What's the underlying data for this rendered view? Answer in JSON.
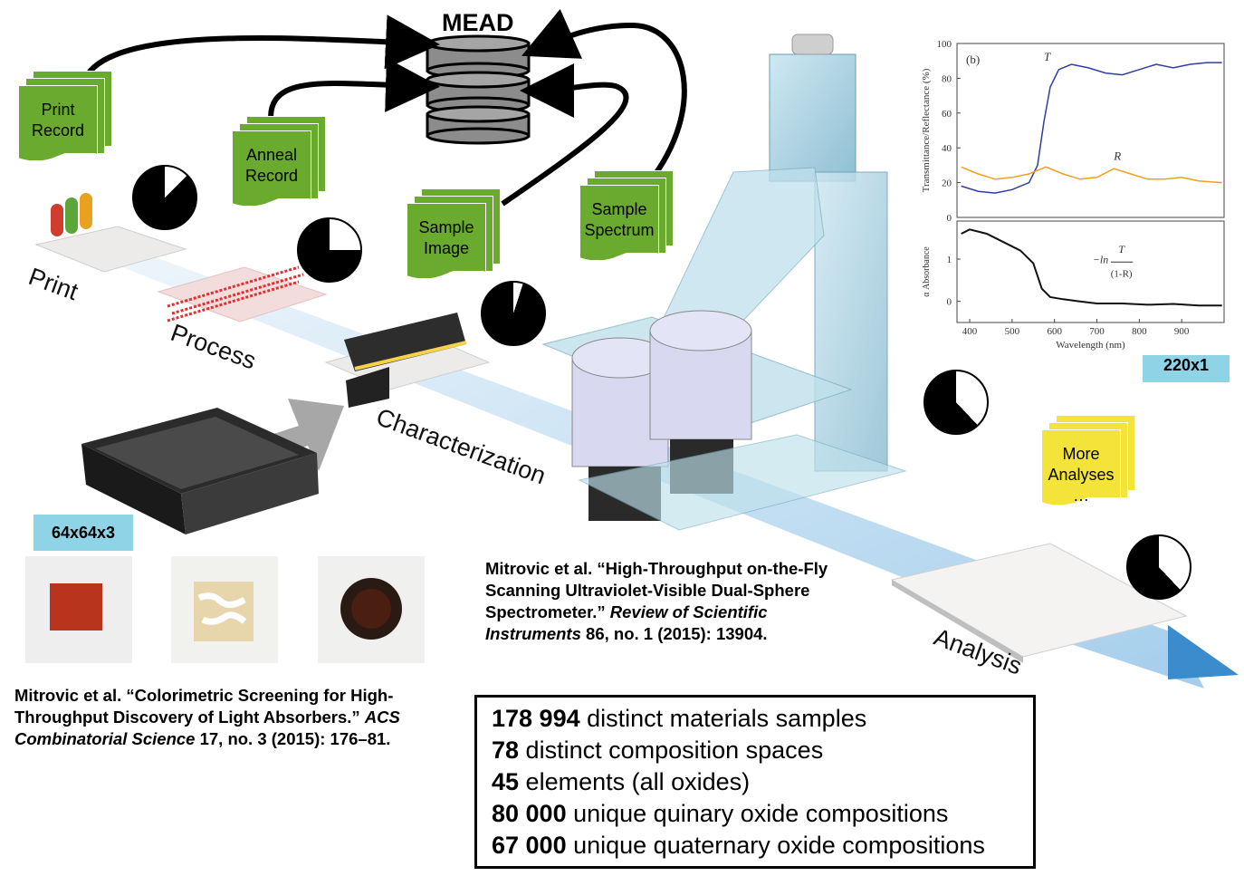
{
  "database": {
    "label": "MEAD"
  },
  "documents": [
    {
      "id": "print-record",
      "lines": [
        "Print",
        "Record"
      ],
      "color": "#6aaa2f"
    },
    {
      "id": "anneal-record",
      "lines": [
        "Anneal",
        "Record"
      ],
      "color": "#6aaa2f"
    },
    {
      "id": "sample-image",
      "lines": [
        "Sample",
        "Image"
      ],
      "color": "#6aaa2f"
    },
    {
      "id": "sample-spectrum",
      "lines": [
        "Sample",
        "Spectrum"
      ],
      "color": "#6aaa2f"
    },
    {
      "id": "more-analyses",
      "lines": [
        "More",
        "Analyses",
        "…"
      ],
      "color": "#f4e43a"
    }
  ],
  "stages": {
    "print": "Print",
    "process": "Process",
    "characterization": "Characterization",
    "analysis": "Analysis"
  },
  "progress_pies": {
    "print": 0.875,
    "process": 0.75,
    "characterization": 0.95,
    "uvvis": 0.62,
    "analysis": 0.62
  },
  "tags": {
    "image_size": "64x64x3",
    "spectrum_size": "220x1"
  },
  "references": {
    "colorimetric": {
      "part1": "Mitrovic et al. “Colorimetric Screening for High-Throughput Discovery of Light Absorbers.” ",
      "journal": "ACS Combinatorial Science",
      "part2": " 17, no. 3 (2015): 176–81."
    },
    "spectrometer": {
      "part1": "Mitrovic et al. “High-Throughput on-the-Fly Scanning Ultraviolet-Visible Dual-Sphere Spectrometer.” ",
      "journal": "Review of Scientific Instruments",
      "part2": " 86, no. 1 (2015): 13904."
    }
  },
  "stats": [
    {
      "number": "178 994",
      "text": " distinct materials samples"
    },
    {
      "number": "78",
      "text": " distinct composition spaces"
    },
    {
      "number": "45",
      "text": " elements (all oxides)"
    },
    {
      "number": "80 000",
      "text": " unique quinary oxide compositions"
    },
    {
      "number": "67 000",
      "text": " unique quaternary oxide compositions"
    }
  ],
  "chart_data": [
    {
      "type": "line",
      "panel_label": "(b)",
      "ylabel": "Transmittance/Reflectance (%)",
      "ylim": [
        0,
        100
      ],
      "yticks": [
        0,
        20,
        40,
        60,
        80,
        100
      ],
      "xlim": [
        370,
        1000
      ],
      "series": [
        {
          "name": "T",
          "color": "#2e3f9e",
          "x": [
            380,
            420,
            460,
            500,
            540,
            560,
            575,
            590,
            610,
            640,
            680,
            720,
            760,
            800,
            840,
            880,
            920,
            960,
            995
          ],
          "y": [
            18,
            15,
            14,
            16,
            20,
            30,
            55,
            75,
            85,
            88,
            86,
            83,
            82,
            85,
            88,
            86,
            88,
            89,
            89
          ]
        },
        {
          "name": "R",
          "color": "#f0a020",
          "x": [
            380,
            420,
            460,
            500,
            540,
            580,
            620,
            660,
            700,
            740,
            780,
            820,
            860,
            900,
            940,
            995
          ],
          "y": [
            29,
            25,
            22,
            23,
            25,
            29,
            25,
            22,
            23,
            28,
            25,
            22,
            22,
            23,
            21,
            20
          ]
        }
      ]
    },
    {
      "type": "line",
      "ylabel": "α Absorbance",
      "xlabel": "Wavelength (nm)",
      "yticks": [
        0,
        1
      ],
      "xticks": [
        400,
        500,
        600,
        700,
        800,
        900
      ],
      "xlim": [
        370,
        1000
      ],
      "ylim": [
        -0.5,
        1.9
      ],
      "annotation": {
        "prefix": "−ln",
        "numerator": "T",
        "denominator": "(1-R)"
      },
      "series": [
        {
          "name": "",
          "color": "#111111",
          "x": [
            380,
            400,
            440,
            480,
            520,
            550,
            570,
            590,
            620,
            660,
            700,
            760,
            820,
            880,
            940,
            995
          ],
          "y": [
            1.6,
            1.7,
            1.6,
            1.4,
            1.2,
            0.9,
            0.3,
            0.1,
            0.05,
            0.0,
            -0.05,
            -0.05,
            -0.08,
            -0.06,
            -0.1,
            -0.1
          ]
        }
      ]
    }
  ]
}
